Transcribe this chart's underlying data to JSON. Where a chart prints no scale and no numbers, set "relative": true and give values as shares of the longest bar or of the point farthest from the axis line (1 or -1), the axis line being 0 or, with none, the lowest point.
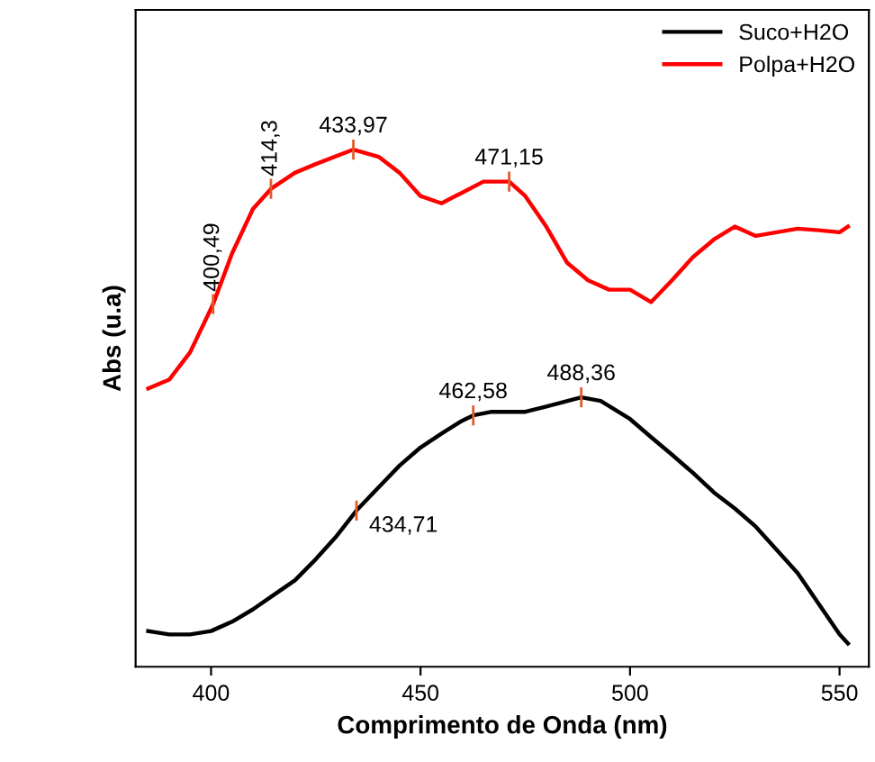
{
  "chart_data": {
    "type": "line",
    "xlabel": "Comprimento de Onda (nm)",
    "ylabel": "Abs (u.a)",
    "relative": true,
    "xlim": [
      382,
      557
    ],
    "xticks": [
      400,
      450,
      500,
      550
    ],
    "legend": "top right",
    "grid": false,
    "series": [
      {
        "name": "Suco+H2O",
        "color": "#000000",
        "x": [
          385,
          390,
          395,
          400,
          405,
          410,
          415,
          420,
          425,
          430,
          434.71,
          440,
          445,
          450,
          455,
          460,
          462.58,
          467,
          475,
          480,
          488.36,
          493,
          500,
          505,
          510,
          515,
          520,
          525,
          530,
          535,
          540,
          545,
          550,
          552
        ],
        "values": [
          0.069,
          0.0625,
          0.0625,
          0.069,
          0.087,
          0.111,
          0.139,
          0.167,
          0.208,
          0.253,
          0.302,
          0.347,
          0.389,
          0.424,
          0.451,
          0.476,
          0.486,
          0.493,
          0.493,
          0.503,
          0.521,
          0.514,
          0.479,
          0.444,
          0.41,
          0.375,
          0.337,
          0.306,
          0.271,
          0.226,
          0.181,
          0.122,
          0.0625,
          0.045
        ]
      },
      {
        "name": "Polpa+H2O",
        "color": "#ff0000",
        "x": [
          385,
          390,
          395,
          400.49,
          405,
          410,
          414.3,
          420,
          425,
          433.97,
          440,
          445,
          450,
          455,
          460,
          465,
          471.15,
          475,
          480,
          485,
          490,
          495,
          500,
          505,
          510,
          515,
          520,
          525,
          530,
          535,
          540,
          545,
          550,
          552
        ],
        "values": [
          0.538,
          0.555,
          0.608,
          0.701,
          0.799,
          0.885,
          0.924,
          0.955,
          0.972,
          1.0,
          0.986,
          0.955,
          0.91,
          0.896,
          0.917,
          0.938,
          0.938,
          0.91,
          0.851,
          0.781,
          0.747,
          0.729,
          0.729,
          0.705,
          0.747,
          0.792,
          0.826,
          0.851,
          0.833,
          0.84,
          0.847,
          0.844,
          0.84,
          0.851
        ]
      }
    ],
    "annotations": [
      {
        "text": "400,49",
        "x": 400.49,
        "y": 0.701
      },
      {
        "text": "414,3",
        "x": 414.3,
        "y": 0.924
      },
      {
        "text": "433,97",
        "x": 433.97,
        "y": 1.0
      },
      {
        "text": "471,15",
        "x": 471.15,
        "y": 0.938
      },
      {
        "text": "434,71",
        "x": 434.71,
        "y": 0.302
      },
      {
        "text": "462,58",
        "x": 462.58,
        "y": 0.486
      },
      {
        "text": "488,36",
        "x": 488.36,
        "y": 0.521
      }
    ]
  }
}
